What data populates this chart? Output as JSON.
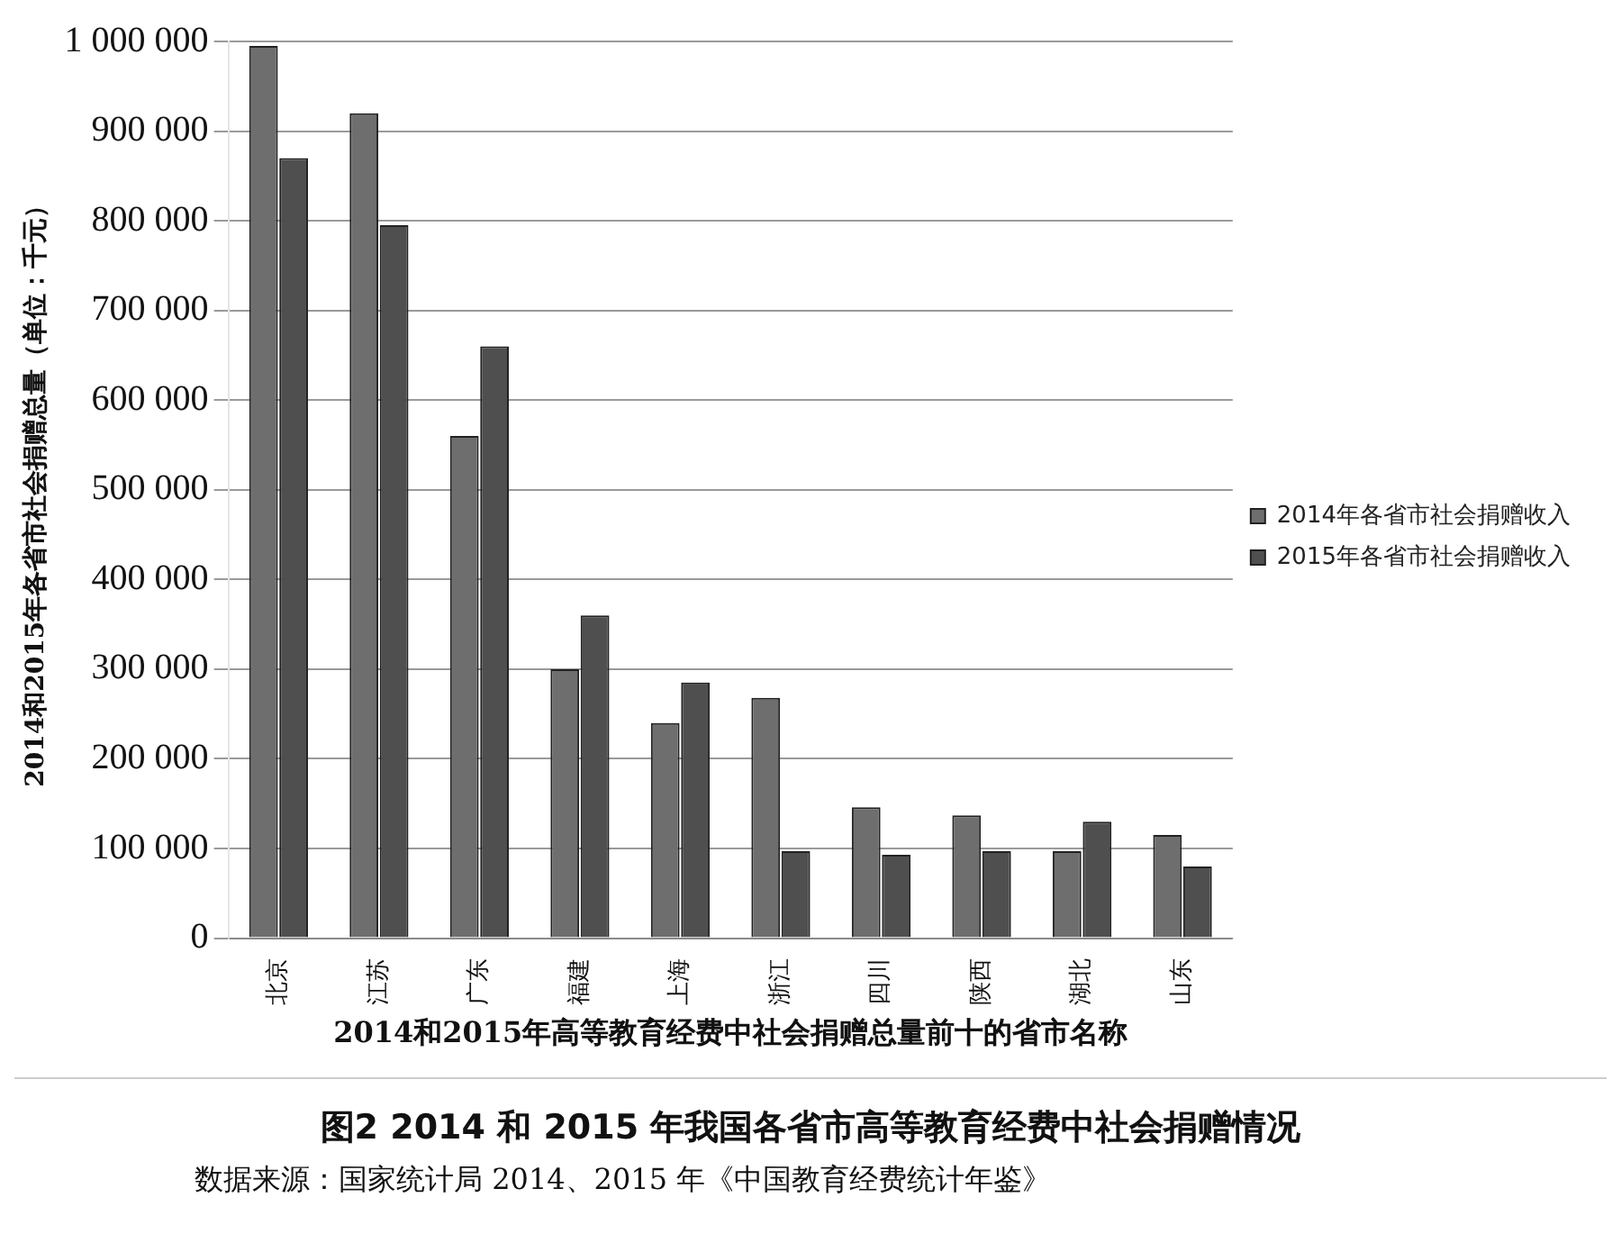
{
  "chart_data": {
    "type": "bar",
    "title": "图2  2014 和 2015 年我国各省市高等教育经费中社会捐赠情况",
    "xlabel": "2014和2015年高等教育经费中社会捐赠总量前十的省市名称",
    "ylabel": "2014和2015年各省市社会捐赠总量（单位：千元）",
    "annotations": [
      "数据来源：国家统计局 2014、2015 年《中国教育经费统计年鉴》"
    ],
    "categories": [
      "北京",
      "江苏",
      "广东",
      "福建",
      "上海",
      "浙江",
      "四川",
      "陕西",
      "湖北",
      "山东"
    ],
    "series": [
      {
        "name": "2014年各省市社会捐赠收入",
        "color": "#6e6e6e",
        "values": [
          995000,
          920000,
          560000,
          300000,
          240000,
          268000,
          146000,
          137000,
          97000,
          115000
        ]
      },
      {
        "name": "2015年各省市社会捐赠收入",
        "color": "#4f4f4f",
        "values": [
          870000,
          795000,
          660000,
          360000,
          285000,
          97000,
          93000,
          97000,
          130000,
          80000
        ]
      }
    ],
    "ylim": [
      0,
      1000000
    ],
    "yticks": [
      0,
      {
        "value": 100000,
        "label": "100 000"
      },
      {
        "value": 200000,
        "label": "200 000"
      },
      {
        "value": 300000,
        "label": "300 000"
      },
      {
        "value": 400000,
        "label": "400 000"
      },
      {
        "value": 500000,
        "label": "500 000"
      },
      {
        "value": 600000,
        "label": "600 000"
      },
      {
        "value": 700000,
        "label": "700 000"
      },
      {
        "value": 800000,
        "label": "800 000"
      },
      {
        "value": 900000,
        "label": "900 000"
      },
      {
        "value": 1000000,
        "label": "1 000 000"
      }
    ],
    "grid": "y",
    "legend": "right"
  }
}
